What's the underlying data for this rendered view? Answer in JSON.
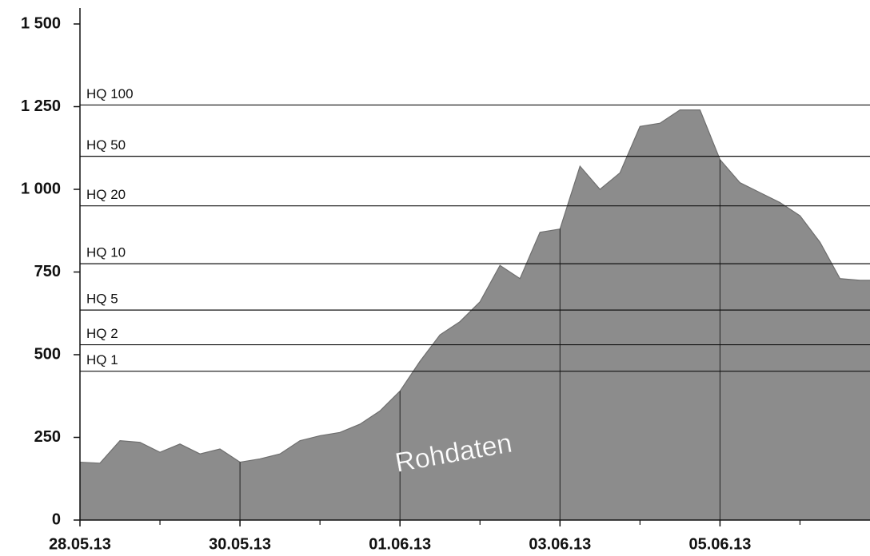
{
  "chart_data": {
    "type": "area",
    "color": "#8c8c8c",
    "x": [
      "2013-05-28T00:00",
      "2013-05-28T06:00",
      "2013-05-28T12:00",
      "2013-05-28T18:00",
      "2013-05-29T00:00",
      "2013-05-29T06:00",
      "2013-05-29T12:00",
      "2013-05-29T18:00",
      "2013-05-30T00:00",
      "2013-05-30T06:00",
      "2013-05-30T12:00",
      "2013-05-30T18:00",
      "2013-05-31T00:00",
      "2013-05-31T06:00",
      "2013-05-31T12:00",
      "2013-05-31T18:00",
      "2013-06-01T00:00",
      "2013-06-01T06:00",
      "2013-06-01T12:00",
      "2013-06-01T18:00",
      "2013-06-02T00:00",
      "2013-06-02T06:00",
      "2013-06-02T12:00",
      "2013-06-02T18:00",
      "2013-06-03T00:00",
      "2013-06-03T06:00",
      "2013-06-03T12:00",
      "2013-06-03T18:00",
      "2013-06-04T00:00",
      "2013-06-04T06:00",
      "2013-06-04T12:00",
      "2013-06-04T18:00",
      "2013-06-05T00:00",
      "2013-06-05T06:00",
      "2013-06-05T12:00",
      "2013-06-05T18:00",
      "2013-06-06T00:00",
      "2013-06-06T06:00",
      "2013-06-06T12:00",
      "2013-06-06T18:00",
      "2013-06-06T21:00"
    ],
    "values": [
      175,
      172,
      240,
      235,
      205,
      230,
      200,
      215,
      175,
      185,
      200,
      240,
      255,
      265,
      290,
      330,
      390,
      480,
      560,
      600,
      660,
      770,
      730,
      870,
      880,
      1070,
      1000,
      1050,
      1190,
      1200,
      1240,
      1240,
      1090,
      1020,
      990,
      960,
      920,
      840,
      730,
      725,
      725
    ],
    "xlim": [
      "2013-05-28T00:00",
      "2013-06-06T21:00"
    ],
    "xticks": [
      {
        "value": "2013-05-28T00:00",
        "label": "28.05.13"
      },
      {
        "value": "2013-05-30T00:00",
        "label": "30.05.13"
      },
      {
        "value": "2013-06-01T00:00",
        "label": "01.06.13"
      },
      {
        "value": "2013-06-03T00:00",
        "label": "03.06.13"
      },
      {
        "value": "2013-06-05T00:00",
        "label": "05.06.13"
      }
    ],
    "ylim": [
      0,
      1500
    ],
    "yticks": [
      0,
      250,
      500,
      750,
      {
        "value": 1000,
        "label": "1 000"
      },
      {
        "value": 1250,
        "label": "1 250"
      },
      {
        "value": 1500,
        "label": "1 500"
      }
    ],
    "reference_lines": [
      {
        "label": "HQ 100",
        "value": 1255
      },
      {
        "label": "HQ 50",
        "value": 1100
      },
      {
        "label": "HQ 20",
        "value": 950
      },
      {
        "label": "HQ 10",
        "value": 775
      },
      {
        "label": "HQ 5",
        "value": 635
      },
      {
        "label": "HQ 2",
        "value": 530
      },
      {
        "label": "HQ 1",
        "value": 450
      }
    ],
    "annotation": "Rohdaten"
  }
}
